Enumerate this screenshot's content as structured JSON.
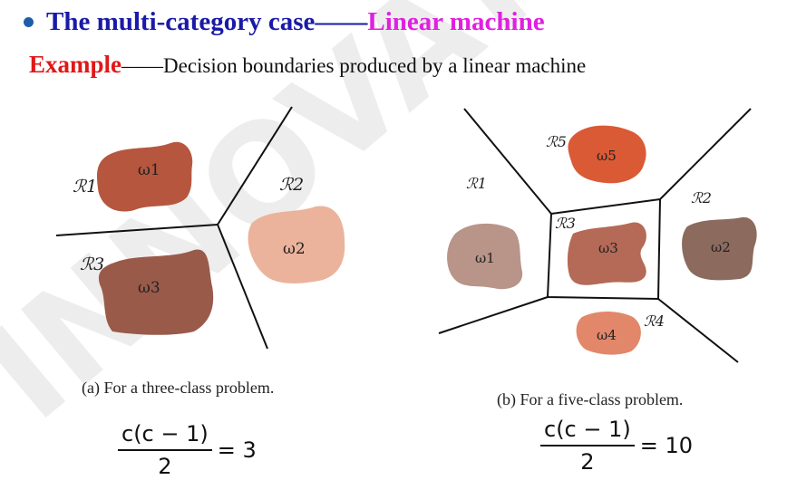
{
  "title": {
    "main": "The multi-category case——",
    "accent": "Linear machine",
    "colors": {
      "main": "#1a1aa8",
      "accent": "#e020e0",
      "bullet": "#1e5ea8"
    }
  },
  "subtitle": {
    "example": "Example",
    "dash": "——",
    "description": "Decision boundaries produced by a linear machine"
  },
  "watermark": {
    "text": "INNOVATISE"
  },
  "diagram_a": {
    "regions": {
      "r1": "ℛ1",
      "r2": "ℛ2",
      "r3": "ℛ3"
    },
    "classes": {
      "w1": "ω1",
      "w2": "ω2",
      "w3": "ω3"
    },
    "colors": {
      "w1": "#b6563e",
      "w2": "#ebb39c",
      "w3": "#9a5a4a"
    },
    "caption": "(a) For a three-class problem.",
    "formula": {
      "numerator": "c(c − 1)",
      "denominator": "2",
      "result": "= 3"
    }
  },
  "diagram_b": {
    "regions": {
      "r1": "ℛ1",
      "r2": "ℛ2",
      "r3": "ℛ3",
      "r4": "ℛ4",
      "r5": "ℛ5"
    },
    "classes": {
      "w1": "ω1",
      "w2": "ω2",
      "w3": "ω3",
      "w4": "ω4",
      "w5": "ω5"
    },
    "colors": {
      "w1": "#b89489",
      "w2": "#8c6a5e",
      "w3": "#b46a56",
      "w4": "#e2876a",
      "w5": "#da5a36"
    },
    "caption": "(b) For a five-class problem.",
    "formula": {
      "numerator": "c(c − 1)",
      "denominator": "2",
      "result": "= 10"
    }
  }
}
